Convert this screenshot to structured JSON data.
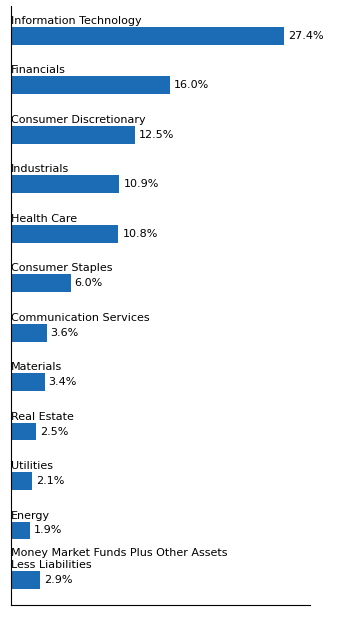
{
  "chart_data": {
    "type": "bar",
    "orientation": "horizontal",
    "categories": [
      "Information Technology",
      "Financials",
      "Consumer Discretionary",
      "Industrials",
      "Health Care",
      "Consumer Staples",
      "Communication Services",
      "Materials",
      "Real Estate",
      "Utilities",
      "Energy",
      "Money Market Funds Plus Other Assets\nLess Liabilities"
    ],
    "values": [
      27.4,
      16.0,
      12.5,
      10.9,
      10.8,
      6.0,
      3.6,
      3.4,
      2.5,
      2.1,
      1.9,
      2.9
    ],
    "value_labels": [
      "27.4%",
      "16.0%",
      "12.5%",
      "10.9%",
      "10.8%",
      "6.0%",
      "3.6%",
      "3.4%",
      "2.5%",
      "2.1%",
      "1.9%",
      "2.9%"
    ],
    "data_labels": true,
    "color": "#1B6BB5",
    "xlim": [
      0,
      30
    ],
    "tick_labels": false,
    "grid": false
  }
}
